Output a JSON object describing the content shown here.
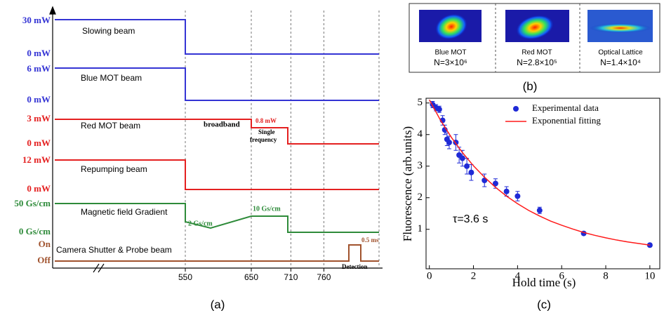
{
  "panel_a": {
    "rows": [
      {
        "name": "Slowing beam",
        "high": "30 mW",
        "low": "0 mW"
      },
      {
        "name": "Blue MOT beam",
        "high": "6 mW",
        "low": "0 mW"
      },
      {
        "name": "Red MOT beam",
        "high": "3 mW",
        "low": "0 mW"
      },
      {
        "name": "Repumping beam",
        "high": "12 mW",
        "low": "0 mW"
      },
      {
        "name": "Magnetic field Gradient",
        "high": "50 Gs/cm",
        "low": "0 Gs/cm"
      },
      {
        "name": "Camera Shutter & Probe beam",
        "high": "On",
        "low": "Off"
      }
    ],
    "annotations": [
      "broadband",
      "0.8 mW",
      "Single",
      "frequency",
      "2 Gs/cm",
      "10 Gs/cm",
      "0.5 ms",
      "Detection"
    ],
    "time_ticks": [
      550,
      650,
      710,
      760
    ],
    "label": "(a)"
  },
  "panel_b": {
    "images": [
      {
        "name": "Blue MOT",
        "count": "N=3×10⁶"
      },
      {
        "name": "Red MOT",
        "count": "N=2.8×10⁵"
      },
      {
        "name": "Optical Lattice",
        "count": "N=1.4×10⁴"
      }
    ],
    "label": "(b)"
  },
  "chart_data": {
    "type": "scatter",
    "xlabel": "Hold time (s)",
    "ylabel": "Fluorescence (arb.units)",
    "annotation": "τ=3.6 s",
    "label": "(c)",
    "xlim": [
      -0.15,
      10.45
    ],
    "ylim": [
      -0.25,
      5.15
    ],
    "xticks": [
      0,
      2,
      4,
      6,
      8,
      10
    ],
    "yticks": [
      1,
      2,
      3,
      4,
      5
    ],
    "series": [
      {
        "name": "Experimental data",
        "color": "#1f2ad6",
        "x": [
          0.15,
          0.3,
          0.45,
          0.6,
          0.7,
          0.8,
          0.9,
          1.2,
          1.35,
          1.5,
          1.7,
          1.9,
          2.5,
          3.0,
          3.5,
          4.0,
          5.0,
          7.0,
          10.0
        ],
        "values": [
          4.95,
          4.85,
          4.8,
          4.45,
          4.15,
          3.85,
          3.75,
          3.75,
          3.35,
          3.25,
          3.0,
          2.8,
          2.55,
          2.45,
          2.2,
          2.05,
          1.6,
          0.87,
          0.5
        ],
        "errors": [
          0.1,
          0.1,
          0.1,
          0.15,
          0.15,
          0.2,
          0.2,
          0.25,
          0.25,
          0.25,
          0.25,
          0.25,
          0.2,
          0.15,
          0.15,
          0.15,
          0.1,
          0.05,
          0.05
        ]
      },
      {
        "name": "Exponential fitting",
        "color": "#ff1a1a",
        "type": "line",
        "x": [
          0,
          0.5,
          1,
          1.5,
          2,
          2.5,
          3,
          3.5,
          4,
          4.5,
          5,
          5.5,
          6,
          6.5,
          7,
          7.5,
          8,
          8.5,
          9,
          9.5,
          10
        ],
        "values": [
          5.1,
          4.46,
          3.91,
          3.43,
          3.01,
          2.65,
          2.33,
          2.05,
          1.81,
          1.6,
          1.42,
          1.26,
          1.13,
          1.01,
          0.9,
          0.81,
          0.73,
          0.66,
          0.6,
          0.55,
          0.5
        ]
      }
    ]
  }
}
